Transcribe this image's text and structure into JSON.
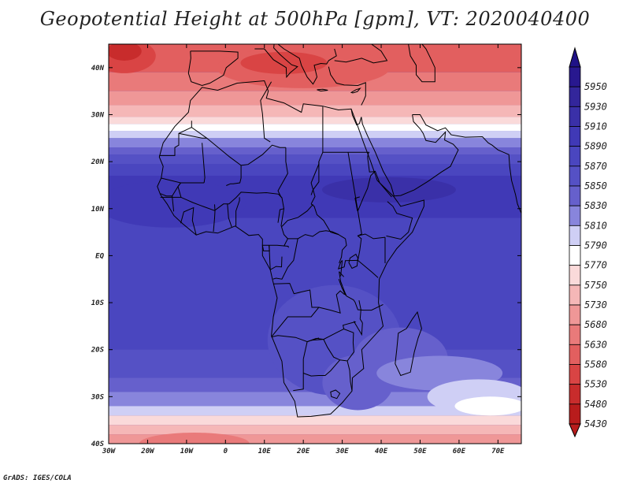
{
  "title": "Geopotential Height at 500hPa [gpm], VT: 2020040400",
  "credit": "GrADS: IGES/COLA",
  "map": {
    "lon_range": [
      -30,
      76
    ],
    "lat_range": [
      -40,
      45
    ],
    "lat_ticks": [
      {
        "lat": 40,
        "label": "40N"
      },
      {
        "lat": 30,
        "label": "30N"
      },
      {
        "lat": 20,
        "label": "20N"
      },
      {
        "lat": 10,
        "label": "10N"
      },
      {
        "lat": 0,
        "label": "EQ"
      },
      {
        "lat": -10,
        "label": "10S"
      },
      {
        "lat": -20,
        "label": "20S"
      },
      {
        "lat": -30,
        "label": "30S"
      },
      {
        "lat": -40,
        "label": "40S"
      }
    ],
    "lon_ticks": [
      {
        "lon": -30,
        "label": "30W"
      },
      {
        "lon": -20,
        "label": "20W"
      },
      {
        "lon": -10,
        "label": "10W"
      },
      {
        "lon": 0,
        "label": "0"
      },
      {
        "lon": 10,
        "label": "10E"
      },
      {
        "lon": 20,
        "label": "20E"
      },
      {
        "lon": 30,
        "label": "30E"
      },
      {
        "lon": 40,
        "label": "40E"
      },
      {
        "lon": 50,
        "label": "50E"
      },
      {
        "lon": 60,
        "label": "60E"
      },
      {
        "lon": 70,
        "label": "70E"
      }
    ]
  },
  "colorbar": {
    "levels": [
      {
        "label": "5950",
        "color": "#28188f"
      },
      {
        "label": "5930",
        "color": "#33269b"
      },
      {
        "label": "5910",
        "color": "#3a30a8"
      },
      {
        "label": "5890",
        "color": "#4039b6"
      },
      {
        "label": "5870",
        "color": "#4a46bf"
      },
      {
        "label": "5850",
        "color": "#5551c5"
      },
      {
        "label": "5830",
        "color": "#6660cc"
      },
      {
        "label": "5810",
        "color": "#8885dc"
      },
      {
        "label": "5790",
        "color": "#cfcff5"
      },
      {
        "label": "5770",
        "color": "#ffffff"
      },
      {
        "label": "5750",
        "color": "#fadada"
      },
      {
        "label": "5730",
        "color": "#f5b7b7"
      },
      {
        "label": "5680",
        "color": "#ef9797"
      },
      {
        "label": "5630",
        "color": "#e97a7a"
      },
      {
        "label": "5580",
        "color": "#e25f5f"
      },
      {
        "label": "5530",
        "color": "#d94444"
      },
      {
        "label": "5480",
        "color": "#c82c2c"
      },
      {
        "label": "5430",
        "color": "#b81c1c"
      }
    ],
    "top_color": "#1f1287",
    "bottom_color": "#b81c1c"
  },
  "fields": {
    "bands_north": [
      {
        "lat": 45,
        "color": "#e25f5f"
      },
      {
        "lat": 39,
        "color": "#e97a7a"
      },
      {
        "lat": 35,
        "color": "#ef9797"
      },
      {
        "lat": 32,
        "color": "#f5b7b7"
      },
      {
        "lat": 29.5,
        "color": "#fadada"
      },
      {
        "lat": 28,
        "color": "#ffffff"
      },
      {
        "lat": 26.5,
        "color": "#cfcff5"
      },
      {
        "lat": 25,
        "color": "#8885dc"
      },
      {
        "lat": 23,
        "color": "#6660cc"
      },
      {
        "lat": 21.5,
        "color": "#5551c5"
      },
      {
        "lat": 19.5,
        "color": "#4a46bf"
      },
      {
        "lat": 17,
        "color": "#4039b6"
      },
      {
        "lat": 8,
        "color": "#4a46bf"
      }
    ],
    "bands_south": [
      {
        "lat": -20,
        "color": "#5551c5"
      },
      {
        "lat": -26,
        "color": "#6660cc"
      },
      {
        "lat": -29,
        "color": "#8885dc"
      },
      {
        "lat": -32,
        "color": "#cfcff5"
      },
      {
        "lat": -34,
        "color": "#fadada"
      },
      {
        "lat": -36,
        "color": "#f5b7b7"
      },
      {
        "lat": -38,
        "color": "#ef9797"
      }
    ]
  }
}
